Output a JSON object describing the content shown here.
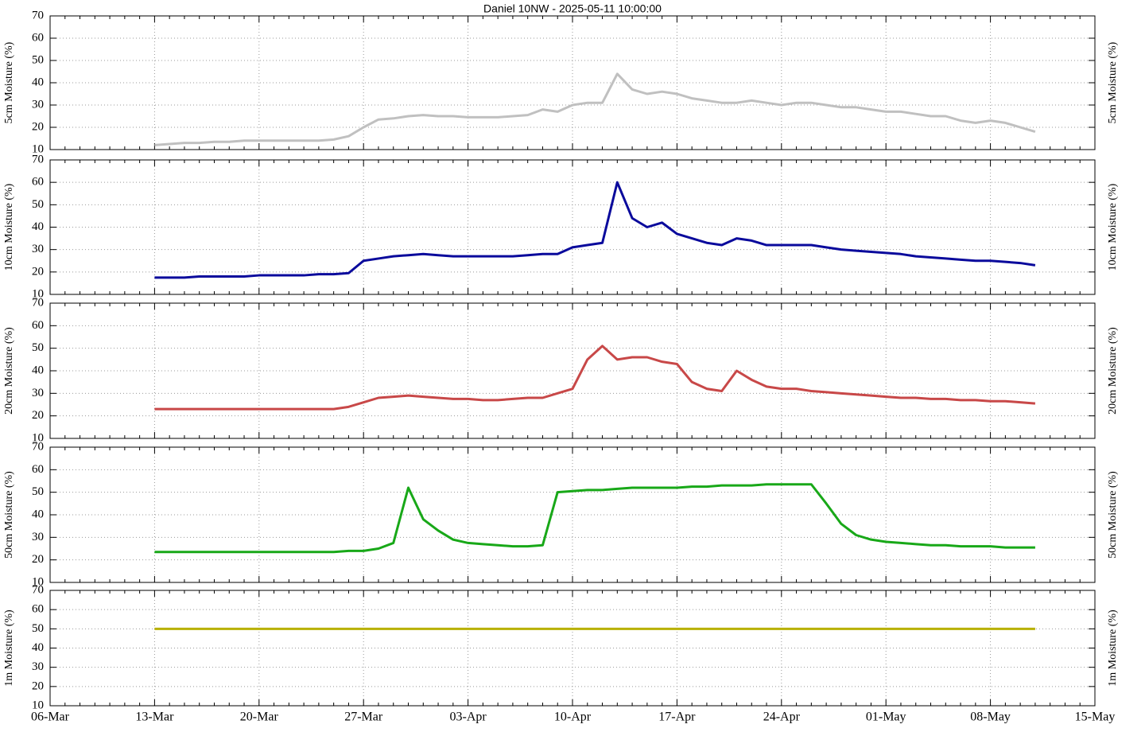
{
  "chart_data": {
    "type": "line",
    "title": "Daniel 10NW - 2025-05-11 10:00:00",
    "categories": [
      "06-Mar",
      null,
      null,
      null,
      null,
      null,
      null,
      "13-Mar",
      null,
      null,
      null,
      null,
      null,
      null,
      "20-Mar",
      null,
      null,
      null,
      null,
      null,
      null,
      "27-Mar",
      null,
      null,
      null,
      null,
      null,
      null,
      "03-Apr",
      null,
      null,
      null,
      null,
      null,
      null,
      "10-Apr",
      null,
      null,
      null,
      null,
      null,
      null,
      "17-Apr",
      null,
      null,
      null,
      null,
      null,
      null,
      "24-Apr",
      null,
      null,
      null,
      null,
      null,
      null,
      "01-May",
      null,
      null,
      null,
      null,
      null,
      null,
      "08-May",
      null,
      null,
      null,
      null,
      null,
      null,
      "15-May"
    ],
    "ylim": [
      10,
      70
    ],
    "yticks": [
      10,
      20,
      30,
      40,
      50,
      60,
      70
    ],
    "grid": true,
    "series": [
      {
        "name": "5cm Moisture (%)",
        "color": "#c0c0c0",
        "values": [
          null,
          null,
          null,
          null,
          null,
          null,
          null,
          12,
          12.5,
          13,
          13,
          13.5,
          13.5,
          14,
          14,
          14,
          14,
          14,
          14,
          14.5,
          16,
          20,
          23.5,
          24,
          25,
          25.5,
          25,
          25,
          24.5,
          24.5,
          24.5,
          25,
          25.5,
          28,
          27,
          30,
          31,
          31,
          44,
          37,
          35,
          36,
          35,
          33,
          32,
          31,
          31,
          32,
          31,
          30,
          31,
          31,
          30,
          29,
          29,
          28,
          27,
          27,
          26,
          25,
          25,
          23,
          22,
          23,
          22,
          20,
          18,
          null,
          null,
          null,
          null
        ]
      },
      {
        "name": "10cm Moisture (%)",
        "color": "#0a0a9c",
        "values": [
          null,
          null,
          null,
          null,
          null,
          null,
          null,
          17.5,
          17.5,
          17.5,
          18,
          18,
          18,
          18,
          18.5,
          18.5,
          18.5,
          18.5,
          19,
          19,
          19.5,
          25,
          26,
          27,
          27.5,
          28,
          27.5,
          27,
          27,
          27,
          27,
          27,
          27.5,
          28,
          28,
          31,
          32,
          33,
          60,
          44,
          40,
          42,
          37,
          35,
          33,
          32,
          35,
          34,
          32,
          32,
          32,
          32,
          31,
          30,
          29.5,
          29,
          28.5,
          28,
          27,
          26.5,
          26,
          25.5,
          25,
          25,
          24.5,
          24,
          23,
          null,
          null,
          null,
          null
        ]
      },
      {
        "name": "20cm Moisture (%)",
        "color": "#c84848",
        "values": [
          null,
          null,
          null,
          null,
          null,
          null,
          null,
          23,
          23,
          23,
          23,
          23,
          23,
          23,
          23,
          23,
          23,
          23,
          23,
          23,
          24,
          26,
          28,
          28.5,
          29,
          28.5,
          28,
          27.5,
          27.5,
          27,
          27,
          27.5,
          28,
          28,
          30,
          32,
          45,
          51,
          45,
          46,
          46,
          44,
          43,
          35,
          32,
          31,
          40,
          36,
          33,
          32,
          32,
          31,
          30.5,
          30,
          29.5,
          29,
          28.5,
          28,
          28,
          27.5,
          27.5,
          27,
          27,
          26.5,
          26.5,
          26,
          25.5,
          null,
          null,
          null,
          null
        ]
      },
      {
        "name": "50cm Moisture (%)",
        "color": "#18a818",
        "values": [
          null,
          null,
          null,
          null,
          null,
          null,
          null,
          23.5,
          23.5,
          23.5,
          23.5,
          23.5,
          23.5,
          23.5,
          23.5,
          23.5,
          23.5,
          23.5,
          23.5,
          23.5,
          24,
          24,
          25,
          27.5,
          52,
          38,
          33,
          29,
          27.5,
          27,
          26.5,
          26,
          26,
          26.5,
          50,
          50.5,
          51,
          51,
          51.5,
          52,
          52,
          52,
          52,
          52.5,
          52.5,
          53,
          53,
          53,
          53.5,
          53.5,
          53.5,
          53.5,
          45,
          36,
          31,
          29,
          28,
          27.5,
          27,
          26.5,
          26.5,
          26,
          26,
          26,
          25.5,
          25.5,
          25.5,
          null,
          null,
          null,
          null
        ]
      },
      {
        "name": "1m Moisture (%)",
        "color": "#b8b000",
        "values": [
          null,
          null,
          null,
          null,
          null,
          null,
          null,
          50,
          50,
          50,
          50,
          50,
          50,
          50,
          50,
          50,
          50,
          50,
          50,
          50,
          50,
          50,
          50,
          50,
          50,
          50,
          50,
          50,
          50,
          50,
          50,
          50,
          50,
          50,
          50,
          50,
          50,
          50,
          50,
          50,
          50,
          50,
          50,
          50,
          50,
          50,
          50,
          50,
          50,
          50,
          50,
          50,
          50,
          50,
          50,
          50,
          50,
          50,
          50,
          50,
          50,
          50,
          50,
          50,
          50,
          50,
          50,
          null,
          null,
          null,
          null
        ]
      }
    ]
  }
}
